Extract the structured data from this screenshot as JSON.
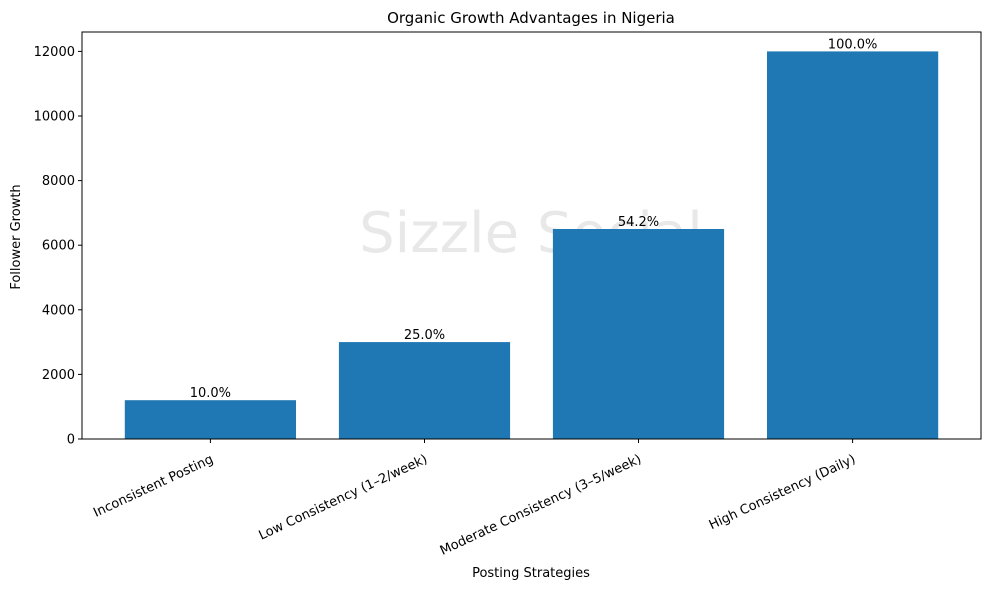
{
  "chart_data": {
    "type": "bar",
    "title": "Organic Growth Advantages in Nigeria",
    "xlabel": "Posting Strategies",
    "ylabel": "Follower Growth",
    "categories": [
      "Inconsistent Posting",
      "Low Consistency (1–2/week)",
      "Moderate Consistency (3–5/week)",
      "High Consistency (Daily)"
    ],
    "values": [
      1200,
      3000,
      6500,
      12000
    ],
    "data_labels": [
      "10.0%",
      "25.0%",
      "54.2%",
      "100.0%"
    ],
    "ylim": [
      0,
      12600
    ],
    "yticks": [
      0,
      2000,
      4000,
      6000,
      8000,
      10000,
      12000
    ],
    "ytick_labels": [
      "0",
      "2000",
      "4000",
      "6000",
      "8000",
      "10000",
      "12000"
    ],
    "bar_color": "#1f77b4",
    "grid": false,
    "watermark": "Sizzle Social"
  }
}
